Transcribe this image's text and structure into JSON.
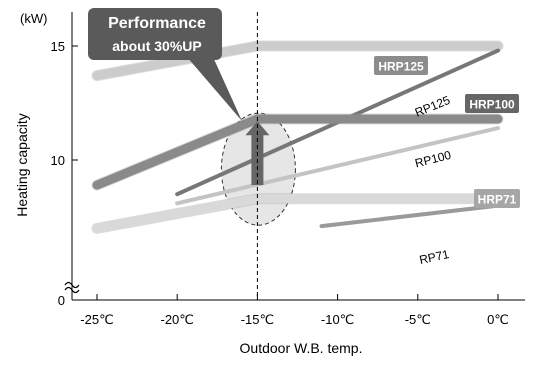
{
  "chart_data": {
    "type": "line",
    "ylabel": "Heating capacity",
    "yunit": "(kW)",
    "xlabel": "Outdoor W.B. temp.",
    "x_tick_labels": [
      "-25℃",
      "-20℃",
      "-15℃",
      "-10℃",
      "-5℃",
      "0℃"
    ],
    "x_tick_values": [
      -25,
      -20,
      -15,
      -10,
      -5,
      0
    ],
    "y_tick_labels": [
      "0",
      "10",
      "15"
    ],
    "y_tick_values": [
      0,
      10,
      15
    ],
    "y_axis_break": true,
    "xlim": [
      -27,
      1
    ],
    "reference_line_x": -15,
    "grid": false,
    "callout": {
      "line1": "Performance",
      "line2": "about 30%UP",
      "bg_color": "#5a5a5a",
      "text_color": "#ffffff"
    },
    "series": [
      {
        "label": "HRP125",
        "label_style": "badge",
        "color": "#cccccc",
        "width": 9,
        "x": [
          -25,
          -15,
          0
        ],
        "y": [
          13.7,
          15.0,
          15.0
        ]
      },
      {
        "label": "RP125",
        "label_style": "text",
        "color": "#777777",
        "width": 4,
        "x": [
          -20,
          0
        ],
        "y": [
          8.5,
          14.8
        ]
      },
      {
        "label": "HRP100",
        "label_style": "badge",
        "color": "#8a8a8a",
        "width": 9,
        "x": [
          -25,
          -15,
          0
        ],
        "y": [
          8.9,
          11.8,
          11.8
        ]
      },
      {
        "label": "RP100",
        "label_style": "text",
        "color": "#c4c4c4",
        "width": 4,
        "x": [
          -20,
          0
        ],
        "y": [
          8.1,
          11.4
        ]
      },
      {
        "label": "HRP71",
        "label_style": "badge",
        "color": "#d9d9d9",
        "width": 9,
        "x": [
          -25,
          -15,
          0
        ],
        "y": [
          7.0,
          8.3,
          8.3
        ]
      },
      {
        "label": "RP71",
        "label_style": "text",
        "color": "#9a9a9a",
        "width": 4,
        "x": [
          -11,
          0
        ],
        "y": [
          7.1,
          8.0
        ]
      }
    ],
    "badge_colors": {
      "HRP125": "#8c8c8c",
      "HRP100": "#666666",
      "HRP71": "#a6a6a6"
    },
    "highlight_color": "#e6e6e6",
    "arrow_color": "#666666"
  }
}
